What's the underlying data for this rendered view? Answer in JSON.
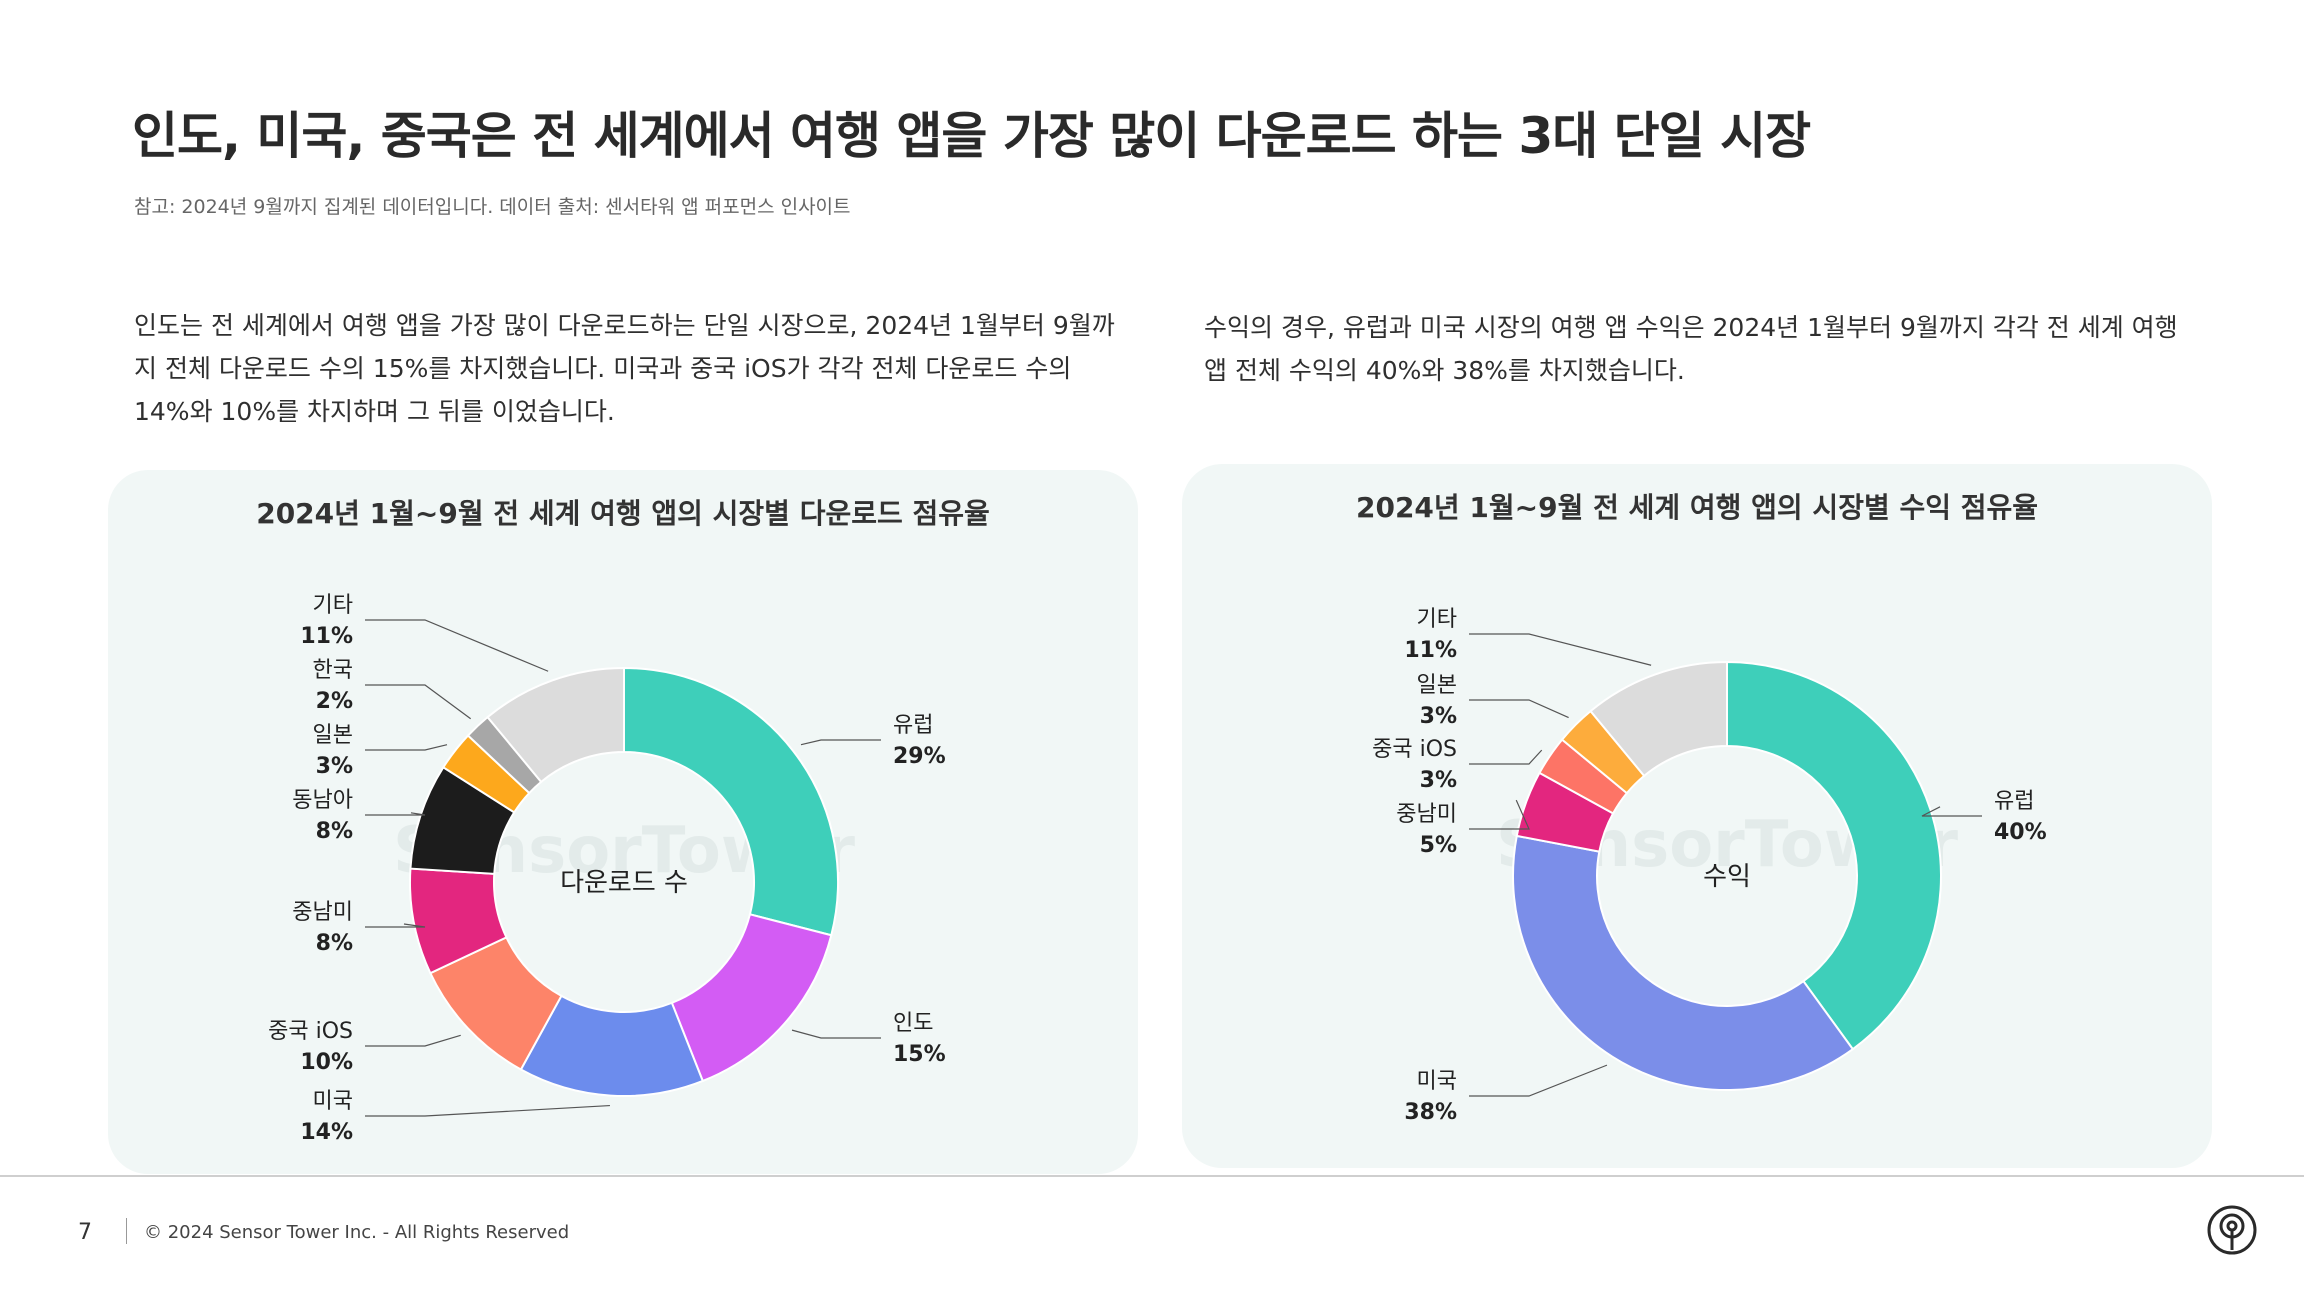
{
  "header": {
    "title": "인도, 미국, 중국은 전 세계에서 여행 앱을 가장 많이 다운로드 하는 3대 단일 시장",
    "note": "참고: 2024년 9월까지 집계된 데이터입니다. 데이터 출처: 센서타워 앱 퍼포먼스 인사이트"
  },
  "paragraphs": {
    "left": "인도는 전 세계에서 여행 앱을 가장 많이 다운로드하는 단일 시장으로, 2024년 1월부터 9월까지 전체 다운로드 수의 15%를 차지했습니다. 미국과 중국 iOS가 각각 전체 다운로드 수의 14%와 10%를 차지하며 그 뒤를 이었습니다.",
    "right": "수익의 경우, 유럽과 미국 시장의 여행 앱 수익은 2024년 1월부터 9월까지 각각 전 세계 여행 앱 전체 수익의 40%와 38%를 차지했습니다."
  },
  "watermark": "SensorTower",
  "footer": {
    "page": "7",
    "copyright": "© 2024 Sensor Tower Inc. - All Rights Reserved",
    "logo_icon": "sensor-tower-logo-icon"
  },
  "chart_data": [
    {
      "type": "pie",
      "title": "2024년 1월~9월 전 세계 여행 앱의 시장별 다운로드 점유율",
      "center_label": "다운로드 수",
      "slices": [
        {
          "label": "유럽",
          "value": 29,
          "pct": "29%",
          "color": "#3ecfba"
        },
        {
          "label": "인도",
          "value": 15,
          "pct": "15%",
          "color": "#d35cf4"
        },
        {
          "label": "미국",
          "value": 14,
          "pct": "14%",
          "color": "#6c8ced"
        },
        {
          "label": "중국 iOS",
          "value": 10,
          "pct": "10%",
          "color": "#fd8469"
        },
        {
          "label": "중남미",
          "value": 8,
          "pct": "8%",
          "color": "#e3267f"
        },
        {
          "label": "동남아",
          "value": 8,
          "pct": "8%",
          "color": "#1c1c1c"
        },
        {
          "label": "일본",
          "value": 3,
          "pct": "3%",
          "color": "#fda81c"
        },
        {
          "label": "한국",
          "value": 2,
          "pct": "2%",
          "color": "#a7a7a7"
        },
        {
          "label": "기타",
          "value": 11,
          "pct": "11%",
          "color": "#dcdcdc"
        }
      ]
    },
    {
      "type": "pie",
      "title": "2024년 1월~9월 전 세계 여행 앱의 시장별 수익 점유율",
      "center_label": "수익",
      "slices": [
        {
          "label": "유럽",
          "value": 40,
          "pct": "40%",
          "color": "#3ecfba"
        },
        {
          "label": "미국",
          "value": 38,
          "pct": "38%",
          "color": "#7b8ee9"
        },
        {
          "label": "중남미",
          "value": 5,
          "pct": "5%",
          "color": "#e3267f"
        },
        {
          "label": "중국 iOS",
          "value": 3,
          "pct": "3%",
          "color": "#fd7466"
        },
        {
          "label": "일본",
          "value": 3,
          "pct": "3%",
          "color": "#fdac3c"
        },
        {
          "label": "기타",
          "value": 11,
          "pct": "11%",
          "color": "#dcdcdc"
        }
      ]
    }
  ]
}
